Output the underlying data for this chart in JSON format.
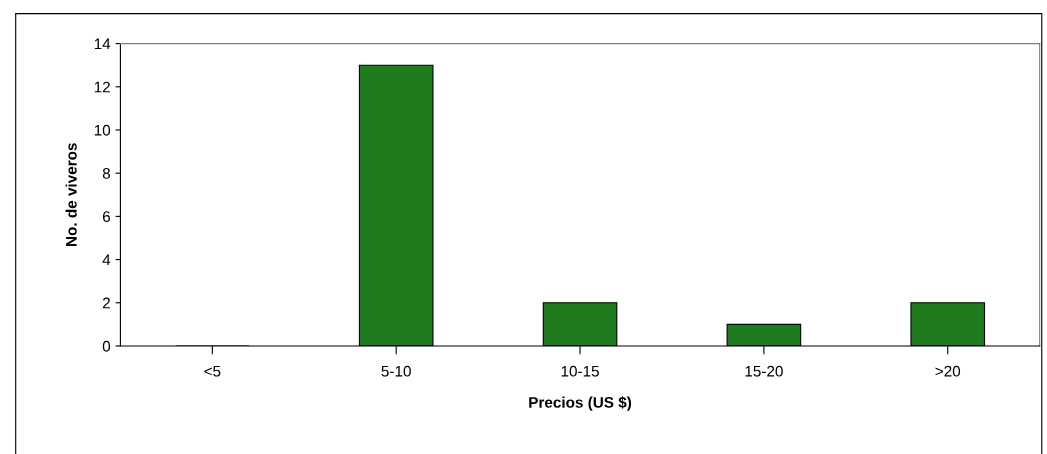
{
  "chart_data": {
    "type": "bar",
    "xlabel": "Precios (US $)",
    "ylabel": "No. de viveros",
    "categories": [
      "<5",
      "5-10",
      "10-15",
      "15-20",
      ">20"
    ],
    "values": [
      0,
      13,
      2,
      1,
      2
    ],
    "color": "#1e7b1e",
    "ylim": [
      0,
      14
    ],
    "yticks": [
      0,
      2,
      4,
      6,
      8,
      10,
      12,
      14
    ],
    "grid": false,
    "legend": false
  }
}
